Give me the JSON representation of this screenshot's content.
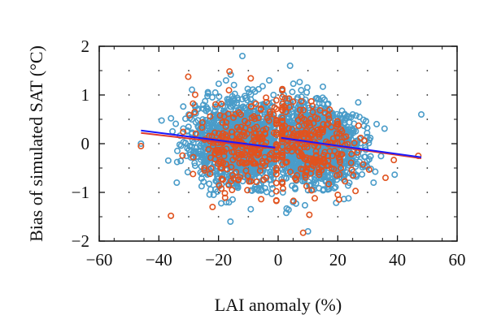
{
  "chart_data": {
    "type": "scatter",
    "xlabel": "LAI anomaly (%)",
    "ylabel": "Bias of simulated SAT (°C)",
    "xlim": [
      -60,
      60
    ],
    "ylim": [
      -2,
      2
    ],
    "xticks": [
      "−60",
      "−40",
      "−20",
      "0",
      "20",
      "40",
      "60"
    ],
    "yticks": [
      "2",
      "1",
      "0",
      "−1",
      "−2"
    ],
    "grid": "dotted",
    "legend": "none",
    "series": [
      {
        "color": "#4a9cc9",
        "marker": "open-circle",
        "clusters": [
          {
            "x_center": -12,
            "x_range": [
              -46,
              -1
            ],
            "y_center": 0.0,
            "y_range": [
              -1.6,
              1.8
            ]
          },
          {
            "x_center": 10,
            "x_range": [
              1,
              48
            ],
            "y_center": 0.0,
            "y_range": [
              -1.8,
              1.7
            ]
          }
        ],
        "sample_points": [
          {
            "x": -12,
            "y": 1.8
          },
          {
            "x": -16,
            "y": -1.6
          },
          {
            "x": 10,
            "y": -1.8
          },
          {
            "x": 48,
            "y": 0.6
          },
          {
            "x": -46,
            "y": 0.0
          },
          {
            "x": 4,
            "y": 1.6
          },
          {
            "x": -34,
            "y": -0.8
          },
          {
            "x": 32,
            "y": -0.8
          },
          {
            "x": -25,
            "y": 0.4
          },
          {
            "x": 25,
            "y": 0.6
          },
          {
            "x": -3,
            "y": 1.3
          },
          {
            "x": 5,
            "y": -1.2
          }
        ]
      },
      {
        "color": "#e0531f",
        "marker": "open-circle",
        "note_points": [
          {
            "x": -46,
            "y": -0.05
          },
          {
            "x": 47,
            "y": -0.25
          },
          {
            "x": -28,
            "y": 0.65
          },
          {
            "x": 36,
            "y": -0.7
          },
          {
            "x": -22,
            "y": -1.3
          },
          {
            "x": 20,
            "y": -1.05
          }
        ]
      }
    ],
    "fit_lines": [
      {
        "color": "#e03a2e",
        "x": [
          -46,
          -1
        ],
        "y": [
          0.22,
          -0.1
        ]
      },
      {
        "color": "#1a1aff",
        "x": [
          -46,
          -1
        ],
        "y": [
          0.27,
          -0.08
        ]
      },
      {
        "color": "#e03a2e",
        "x": [
          1,
          48
        ],
        "y": [
          0.1,
          -0.3
        ]
      },
      {
        "color": "#1a1aff",
        "x": [
          1,
          48
        ],
        "y": [
          0.12,
          -0.28
        ]
      }
    ]
  }
}
